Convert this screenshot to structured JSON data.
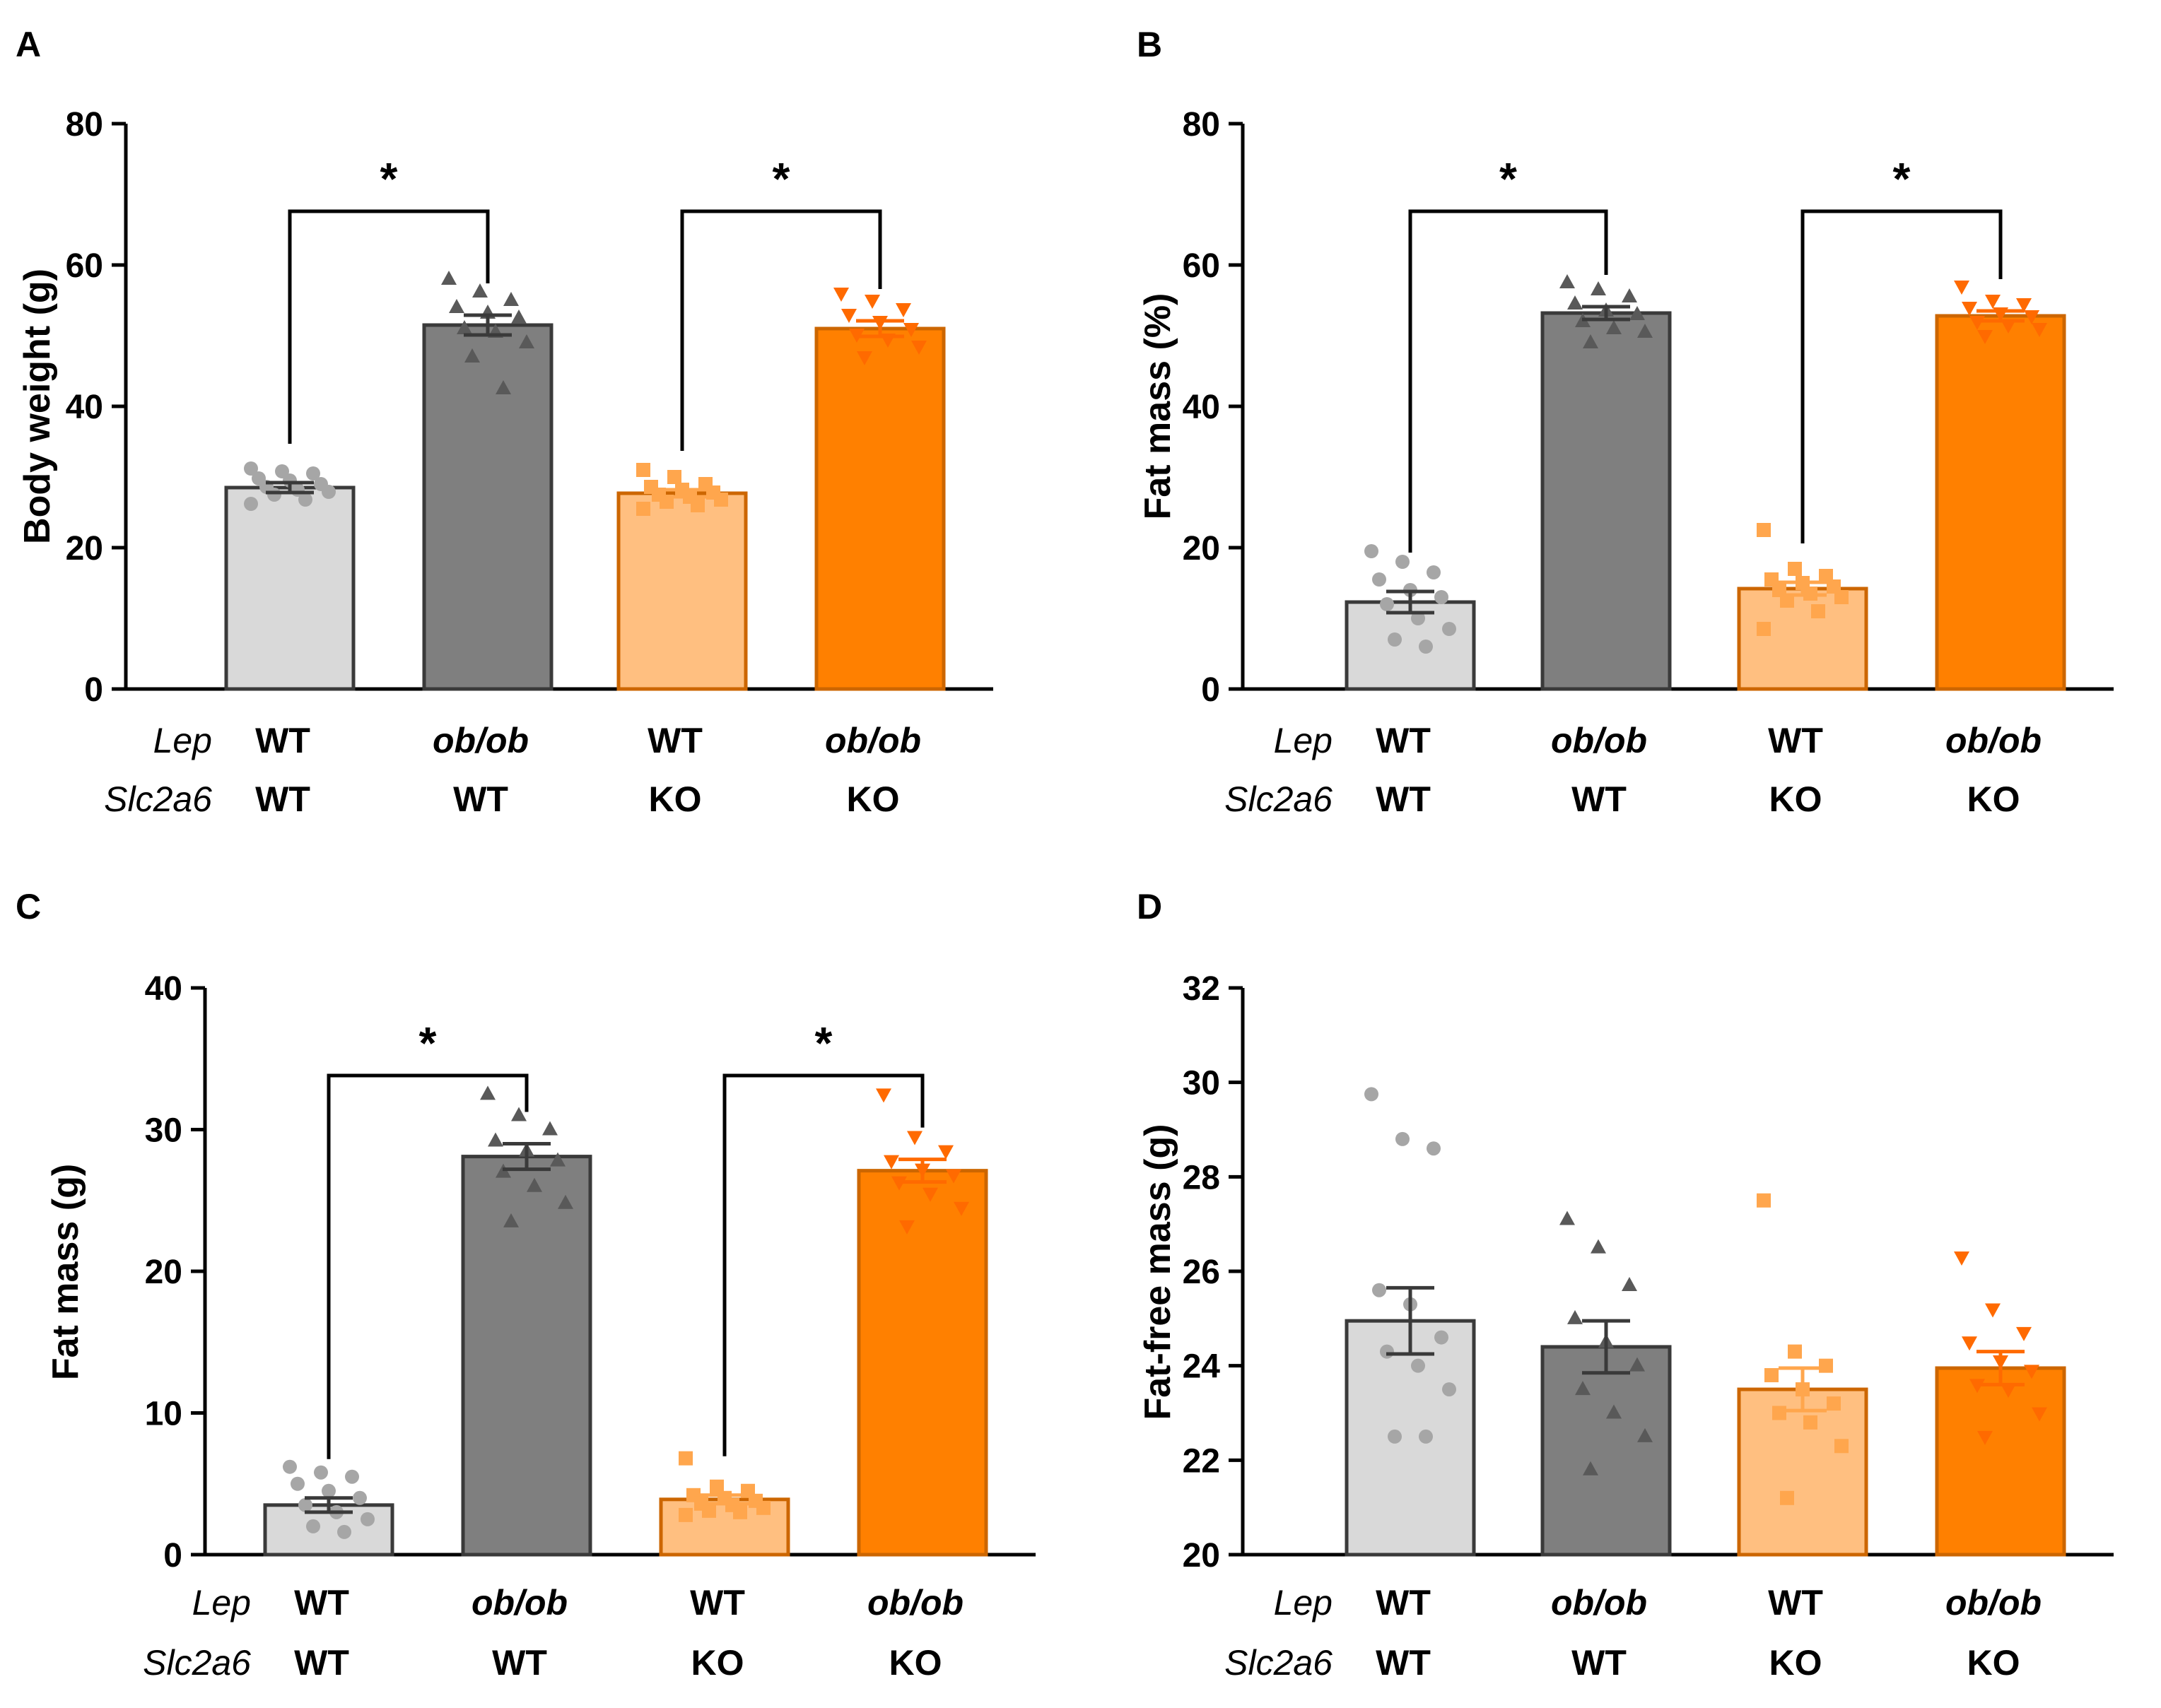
{
  "colors": {
    "wt_wt": "#d9d9d9",
    "obob_wt": "#7f7f7f",
    "wt_ko": "#ffbf80",
    "obob_ko": "#ff8000",
    "dot_wt_wt": "#a6a6a6",
    "dot_obob_wt": "#595959",
    "dot_wt_ko": "#ffa64d",
    "dot_obob_ko": "#ff6a00",
    "edge_gray": "#3a3a3a",
    "edge_orange": "#cc6600"
  },
  "row_labels": {
    "lep": "Lep",
    "slc": "Slc2a6"
  },
  "chart_data": [
    {
      "panel": "A",
      "type": "bar",
      "ylabel": "Body weight (g)",
      "ylim": [
        0,
        80
      ],
      "yticks": [
        "0",
        "20",
        "40",
        "60",
        "80"
      ],
      "significance": [
        "*",
        "*"
      ],
      "groups": [
        {
          "lep": "WT",
          "slc": "WT",
          "mean": 28.5,
          "sem": 0.7,
          "points": [
            31.2,
            30.8,
            30.5,
            29.8,
            29.5,
            29.0,
            28.6,
            28.2,
            27.9,
            27.5,
            26.8,
            26.2
          ]
        },
        {
          "lep": "ob/ob",
          "slc": "WT",
          "mean": 51.5,
          "sem": 1.4,
          "points": [
            58.0,
            56.2,
            55.0,
            54.0,
            53.2,
            52.5,
            51.0,
            50.5,
            49.0,
            47.0,
            42.5
          ]
        },
        {
          "lep": "WT",
          "slc": "KO",
          "mean": 27.7,
          "sem": 0.5,
          "points": [
            31.0,
            30.0,
            29.0,
            28.6,
            28.2,
            27.8,
            27.5,
            27.2,
            26.8,
            26.5,
            26.0,
            25.5
          ]
        },
        {
          "lep": "ob/ob",
          "slc": "KO",
          "mean": 51.0,
          "sem": 1.1,
          "points": [
            56.0,
            55.0,
            53.8,
            53.0,
            52.0,
            51.0,
            50.2,
            49.5,
            48.5,
            47.0
          ]
        }
      ]
    },
    {
      "panel": "B",
      "type": "bar",
      "ylabel": "Fat mass (%)",
      "ylim": [
        0,
        80
      ],
      "yticks": [
        "0",
        "20",
        "40",
        "60",
        "80"
      ],
      "significance": [
        "*",
        "*"
      ],
      "groups": [
        {
          "lep": "WT",
          "slc": "WT",
          "mean": 12.3,
          "sem": 1.5,
          "points": [
            19.5,
            18.0,
            16.5,
            15.5,
            14.0,
            13.0,
            12.0,
            10.0,
            8.5,
            7.0,
            6.0
          ]
        },
        {
          "lep": "ob/ob",
          "slc": "WT",
          "mean": 53.2,
          "sem": 0.9,
          "points": [
            57.5,
            56.5,
            55.5,
            54.5,
            53.5,
            53.0,
            52.0,
            51.0,
            50.5,
            49.0
          ]
        },
        {
          "lep": "WT",
          "slc": "KO",
          "mean": 14.2,
          "sem": 0.9,
          "points": [
            22.5,
            17.0,
            16.0,
            15.5,
            15.0,
            14.5,
            14.0,
            13.5,
            13.0,
            12.5,
            11.0,
            8.5
          ]
        },
        {
          "lep": "ob/ob",
          "slc": "KO",
          "mean": 52.8,
          "sem": 0.7,
          "points": [
            57.0,
            55.0,
            54.5,
            54.0,
            53.2,
            52.8,
            52.0,
            51.5,
            51.0,
            50.0
          ]
        }
      ]
    },
    {
      "panel": "C",
      "type": "bar",
      "ylabel": "Fat mass (g)",
      "ylim": [
        0,
        40
      ],
      "yticks": [
        "0",
        "10",
        "20",
        "30",
        "40"
      ],
      "significance": [
        "*",
        "*"
      ],
      "groups": [
        {
          "lep": "WT",
          "slc": "WT",
          "mean": 3.5,
          "sem": 0.5,
          "points": [
            6.2,
            5.8,
            5.5,
            5.0,
            4.5,
            4.0,
            3.5,
            3.0,
            2.5,
            2.0,
            1.6
          ]
        },
        {
          "lep": "ob/ob",
          "slc": "WT",
          "mean": 28.1,
          "sem": 0.9,
          "points": [
            32.5,
            31.0,
            30.0,
            29.2,
            28.5,
            27.8,
            27.0,
            26.0,
            24.8,
            23.5
          ]
        },
        {
          "lep": "WT",
          "slc": "KO",
          "mean": 3.9,
          "sem": 0.3,
          "points": [
            6.8,
            4.8,
            4.5,
            4.2,
            4.0,
            3.8,
            3.6,
            3.5,
            3.3,
            3.1,
            3.0,
            2.8
          ]
        },
        {
          "lep": "ob/ob",
          "slc": "KO",
          "mean": 27.1,
          "sem": 0.8,
          "points": [
            32.5,
            29.5,
            28.5,
            27.8,
            27.2,
            26.8,
            26.3,
            25.5,
            24.5,
            23.2
          ]
        }
      ]
    },
    {
      "panel": "D",
      "type": "bar",
      "ylabel": "Fat-free mass (g)",
      "ylim": [
        20,
        32
      ],
      "yticks": [
        "20",
        "22",
        "24",
        "26",
        "28",
        "30",
        "32"
      ],
      "significance": [],
      "groups": [
        {
          "lep": "WT",
          "slc": "WT",
          "mean": 24.95,
          "sem": 0.7,
          "points": [
            29.75,
            28.8,
            28.6,
            25.6,
            25.3,
            24.6,
            24.3,
            24.0,
            23.5,
            22.5,
            22.5
          ]
        },
        {
          "lep": "ob/ob",
          "slc": "WT",
          "mean": 24.4,
          "sem": 0.55,
          "points": [
            27.1,
            26.5,
            25.7,
            25.0,
            24.5,
            24.0,
            23.5,
            23.0,
            22.5,
            21.8
          ]
        },
        {
          "lep": "WT",
          "slc": "KO",
          "mean": 23.5,
          "sem": 0.45,
          "points": [
            27.5,
            24.3,
            24.0,
            23.8,
            23.5,
            23.2,
            23.0,
            22.8,
            22.3,
            21.2
          ]
        },
        {
          "lep": "ob/ob",
          "slc": "KO",
          "mean": 23.95,
          "sem": 0.35,
          "points": [
            26.3,
            25.2,
            24.7,
            24.5,
            24.1,
            23.9,
            23.6,
            23.5,
            23.0,
            22.5
          ]
        }
      ]
    }
  ]
}
